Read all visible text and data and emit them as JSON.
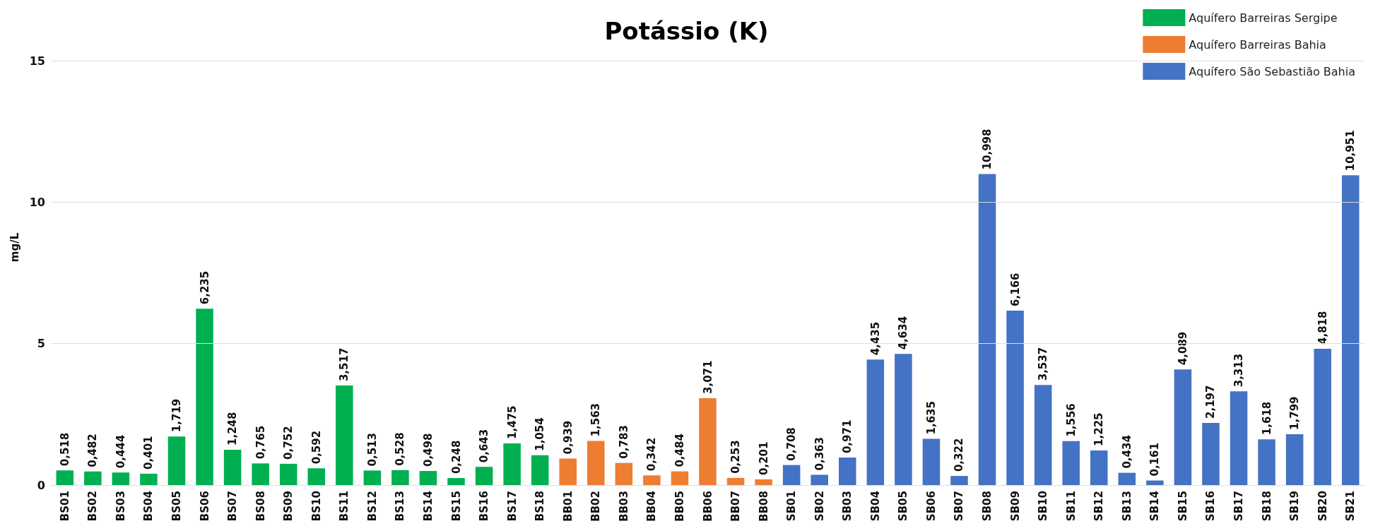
{
  "chart_data": {
    "type": "bar",
    "title": "Potássio (K)",
    "ylabel": "mg/L",
    "categories": [
      "BS01",
      "BS02",
      "BS03",
      "BS04",
      "BS05",
      "BS06",
      "BS07",
      "BS08",
      "BS09",
      "BS10",
      "BS11",
      "BS12",
      "BS13",
      "BS14",
      "BS15",
      "BS16",
      "BS17",
      "BS18",
      "BB01",
      "BB02",
      "BB03",
      "BB04",
      "BB05",
      "BB06",
      "BB07",
      "BB08",
      "SB01",
      "SB02",
      "SB03",
      "SB04",
      "SB05",
      "SB06",
      "SB07",
      "SB08",
      "SB09",
      "SB10",
      "SB11",
      "SB12",
      "SB13",
      "SB14",
      "SB15",
      "SB16",
      "SB17",
      "SB18",
      "SB19",
      "SB20",
      "SB21"
    ],
    "series": [
      {
        "name": "Aquífero Barreiras Sergipe",
        "color": "#00b050",
        "values": [
          0.518,
          0.482,
          0.444,
          0.401,
          1.719,
          6.235,
          1.248,
          0.765,
          0.752,
          0.592,
          3.517,
          0.513,
          0.528,
          0.498,
          0.248,
          0.643,
          1.475,
          1.054,
          null,
          null,
          null,
          null,
          null,
          null,
          null,
          null,
          null,
          null,
          null,
          null,
          null,
          null,
          null,
          null,
          null,
          null,
          null,
          null,
          null,
          null,
          null,
          null,
          null,
          null,
          null,
          null,
          null
        ],
        "value_labels": [
          "0,518",
          "0,482",
          "0,444",
          "0,401",
          "1,719",
          "6,235",
          "1,248",
          "0,765",
          "0,752",
          "0,592",
          "3,517",
          "0,513",
          "0,528",
          "0,498",
          "0,248",
          "0,643",
          "1,475",
          "1,054",
          null,
          null,
          null,
          null,
          null,
          null,
          null,
          null,
          null,
          null,
          null,
          null,
          null,
          null,
          null,
          null,
          null,
          null,
          null,
          null,
          null,
          null,
          null,
          null,
          null,
          null,
          null,
          null,
          null
        ]
      },
      {
        "name": "Aquífero Barreiras Bahia",
        "color": "#ed7d31",
        "values": [
          null,
          null,
          null,
          null,
          null,
          null,
          null,
          null,
          null,
          null,
          null,
          null,
          null,
          null,
          null,
          null,
          null,
          null,
          0.939,
          1.563,
          0.783,
          0.342,
          0.484,
          3.071,
          0.253,
          0.201,
          null,
          null,
          null,
          null,
          null,
          null,
          null,
          null,
          null,
          null,
          null,
          null,
          null,
          null,
          null,
          null,
          null,
          null,
          null,
          null,
          null
        ],
        "value_labels": [
          null,
          null,
          null,
          null,
          null,
          null,
          null,
          null,
          null,
          null,
          null,
          null,
          null,
          null,
          null,
          null,
          null,
          null,
          "0,939",
          "1,563",
          "0,783",
          "0,342",
          "0,484",
          "3,071",
          "0,253",
          "0,201",
          null,
          null,
          null,
          null,
          null,
          null,
          null,
          null,
          null,
          null,
          null,
          null,
          null,
          null,
          null,
          null,
          null,
          null,
          null,
          null,
          null
        ]
      },
      {
        "name": "Aquífero São Sebastião Bahia",
        "color": "#4472c4",
        "values": [
          null,
          null,
          null,
          null,
          null,
          null,
          null,
          null,
          null,
          null,
          null,
          null,
          null,
          null,
          null,
          null,
          null,
          null,
          null,
          null,
          null,
          null,
          null,
          null,
          null,
          null,
          0.708,
          0.363,
          0.971,
          4.435,
          4.634,
          1.635,
          0.322,
          10.998,
          6.166,
          3.537,
          1.556,
          1.225,
          0.434,
          0.161,
          4.089,
          2.197,
          3.313,
          1.618,
          1.799,
          4.818,
          10.951
        ],
        "value_labels": [
          null,
          null,
          null,
          null,
          null,
          null,
          null,
          null,
          null,
          null,
          null,
          null,
          null,
          null,
          null,
          null,
          null,
          null,
          null,
          null,
          null,
          null,
          null,
          null,
          null,
          null,
          "0,708",
          "0,363",
          "0,971",
          "4,435",
          "4,634",
          "1,635",
          "0,322",
          "10,998",
          "6,166",
          "3,537",
          "1,556",
          "1,225",
          "0,434",
          "0,161",
          "4,089",
          "2,197",
          "3,313",
          "1,618",
          "1,799",
          "4,818",
          "10,951"
        ]
      }
    ],
    "ylim": [
      0,
      16.8
    ],
    "yticks": [
      0,
      5,
      10,
      15
    ],
    "grid": "y",
    "legend": "top right"
  }
}
